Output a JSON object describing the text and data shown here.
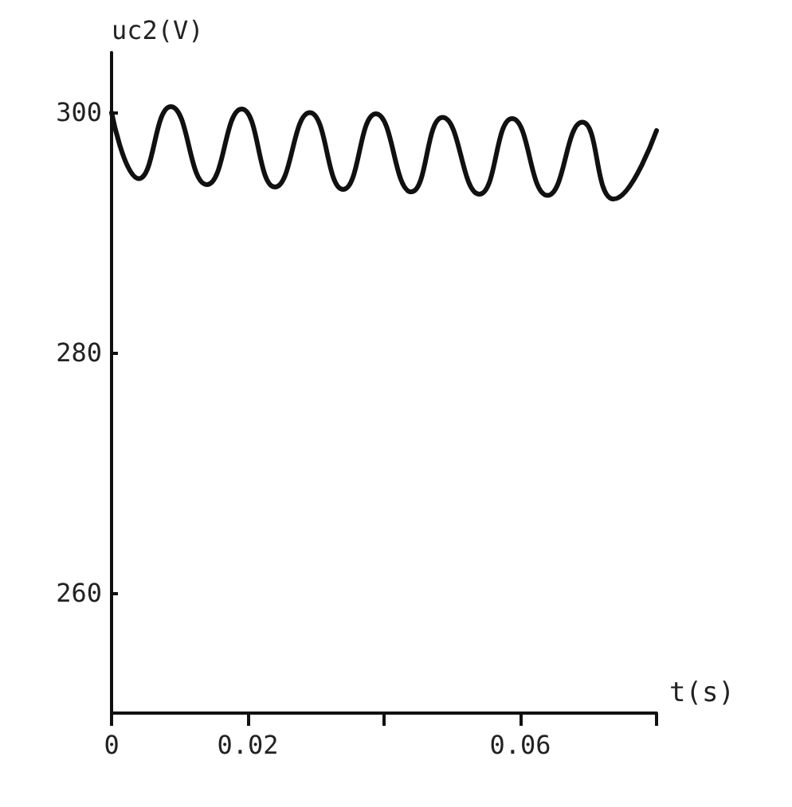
{
  "chart_data": {
    "type": "line",
    "xlabel": "t(s)",
    "ylabel": "uc2(V)",
    "x": [
      0,
      0.004,
      0.0087,
      0.014,
      0.0191,
      0.024,
      0.0291,
      0.034,
      0.0388,
      0.044,
      0.0486,
      0.054,
      0.0588,
      0.064,
      0.0691,
      0.0737,
      0.08
    ],
    "series": [
      {
        "color": "#111111",
        "values": [
          300,
          294.5,
          300.5,
          294,
          300.3,
          293.8,
          300,
          293.6,
          299.9,
          293.4,
          299.6,
          293.2,
          299.5,
          293.1,
          299.2,
          292.8,
          298.5
        ]
      }
    ],
    "xlim": [
      0,
      0.08
    ],
    "xticks": [
      0,
      0.02,
      {
        "value": 0.04,
        "label": null
      },
      0.06,
      {
        "value": 0.08,
        "label": null
      }
    ],
    "ylim": [
      250,
      305
    ],
    "yticks": [
      260,
      280,
      300
    ],
    "grid": false,
    "marker": "none",
    "line_style": "solid"
  }
}
